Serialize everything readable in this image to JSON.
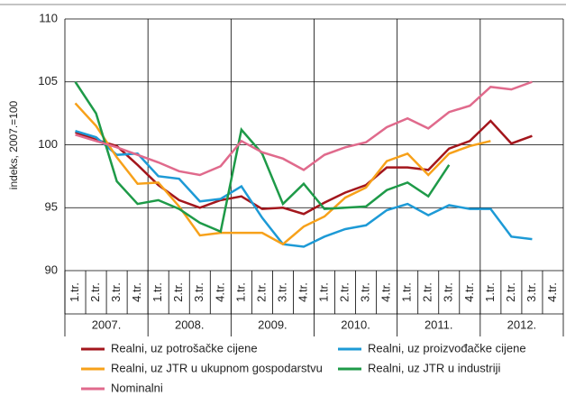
{
  "chart_data": {
    "type": "line",
    "ylabel": "indeks, 2007.=100",
    "categories": [
      "1.tr.",
      "2.tr.",
      "3.tr.",
      "4.tr.",
      "1.tr.",
      "2.tr.",
      "3.tr.",
      "4.tr.",
      "1.tr.",
      "2.tr.",
      "3.tr.",
      "4.tr.",
      "1.tr.",
      "2.tr.",
      "3.tr.",
      "4.tr.",
      "1.tr.",
      "2.tr.",
      "3.tr.",
      "4.tr.",
      "1.tr.",
      "2.tr.",
      "3.tr.",
      "4.tr."
    ],
    "groups": [
      "2007.",
      "2008.",
      "2009.",
      "2010.",
      "2011.",
      "2012."
    ],
    "ylim": [
      90,
      110
    ],
    "yticks": [
      90,
      95,
      100,
      105,
      110
    ],
    "grid": true,
    "series": [
      {
        "name": "Realni, uz potrošačke cijene",
        "color": "#a3161c",
        "values": [
          101.0,
          100.4,
          99.9,
          98.4,
          96.8,
          95.6,
          95.0,
          95.6,
          95.9,
          94.9,
          95.0,
          94.5,
          95.4,
          96.2,
          96.8,
          98.2,
          98.2,
          98.0,
          99.7,
          100.3,
          101.9,
          100.1,
          100.7,
          null
        ]
      },
      {
        "name": "Realni, uz proizvođačke cijene",
        "color": "#1d9ad6",
        "values": [
          101.1,
          100.6,
          99.2,
          99.3,
          97.5,
          97.3,
          95.5,
          95.7,
          96.7,
          94.2,
          92.1,
          91.9,
          92.7,
          93.3,
          93.6,
          94.8,
          95.3,
          94.4,
          95.2,
          94.9,
          94.9,
          92.7,
          92.5,
          null
        ]
      },
      {
        "name": "Realni, uz JTR u ukupnom gospodarstvu",
        "color": "#f7a11a",
        "values": [
          103.3,
          101.5,
          99.0,
          96.9,
          97.0,
          95.1,
          92.8,
          93.0,
          93.0,
          93.0,
          92.1,
          93.5,
          94.3,
          95.8,
          96.6,
          98.7,
          99.3,
          97.6,
          99.3,
          99.9,
          100.3,
          null,
          null,
          null
        ]
      },
      {
        "name": "Realni, uz  JTR u industriji",
        "color": "#1e9a48",
        "values": [
          105.0,
          102.5,
          97.1,
          95.3,
          95.6,
          94.9,
          93.8,
          93.1,
          101.2,
          99.3,
          95.3,
          96.9,
          94.9,
          95.0,
          95.1,
          96.4,
          97.0,
          95.9,
          98.4,
          null,
          null,
          null,
          null,
          null
        ]
      },
      {
        "name": "Nominalni",
        "color": "#e06a8c",
        "values": [
          100.8,
          100.3,
          99.8,
          99.2,
          98.6,
          97.9,
          97.6,
          98.3,
          100.3,
          99.4,
          98.9,
          98.0,
          99.2,
          99.8,
          100.2,
          101.4,
          102.1,
          101.3,
          102.6,
          103.1,
          104.6,
          104.4,
          105.0,
          null
        ]
      }
    ]
  }
}
